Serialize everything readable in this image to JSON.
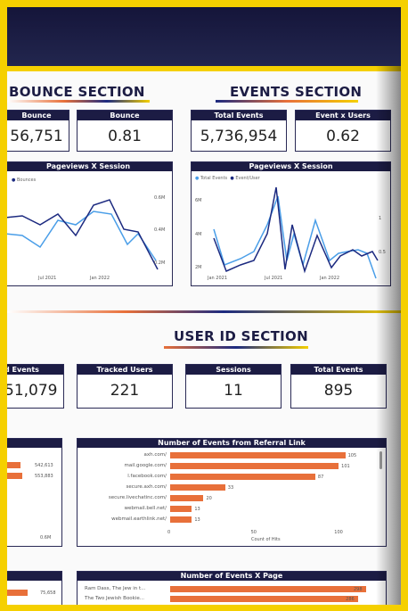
{
  "sections": {
    "bounce": "BOUNCE SECTION",
    "events": "EVENTS SECTION",
    "userid": "USER ID SECTION"
  },
  "cards_top": [
    {
      "label": "Bounce",
      "value": "56,751"
    },
    {
      "label": "Bounce",
      "value": "0.81"
    },
    {
      "label": "Total Events",
      "value": "5,736,954"
    },
    {
      "label": "Event x Users",
      "value": "0.62"
    }
  ],
  "cards_user": [
    {
      "label": "d Events",
      "value": "51,079"
    },
    {
      "label": "Tracked Users",
      "value": "221"
    },
    {
      "label": "Sessions",
      "value": "11"
    },
    {
      "label": "Total Events",
      "value": "895"
    }
  ],
  "pageviews_left": {
    "title": "Pageviews X Session",
    "legend": [
      "Bounces"
    ],
    "yticks": [
      "0.6M",
      "0.4M",
      "0.2M"
    ],
    "xticks": [
      "Jul 2021",
      "Jan 2022"
    ]
  },
  "pageviews_right": {
    "title": "Pageviews X Session",
    "legend": [
      "Total Events",
      "Event/User"
    ],
    "yticks_left": [
      "6M",
      "4M",
      "2M"
    ],
    "yticks_right": [
      "1",
      "0.5"
    ],
    "xticks": [
      "Jan 2021",
      "Jul 2021",
      "Jan 2022"
    ]
  },
  "left_bars": {
    "values": [
      "542,613",
      "553,883"
    ],
    "axis": "0.6M"
  },
  "chart_data": [
    {
      "type": "bar",
      "title": "Number of Events from Referral Link",
      "orientation": "horizontal",
      "categories": [
        "axh.com/",
        "mail.google.com/",
        "l.facebook.com/",
        "secure.axh.com/",
        "secure.livechatinc.com/",
        "webmail.bell.net/",
        "webmail.earthlink.net/"
      ],
      "values": [
        105,
        101,
        87,
        33,
        20,
        13,
        13
      ],
      "xlabel": "Count of Hits",
      "xticks": [
        "0",
        "50",
        "100"
      ],
      "xlim": [
        0,
        110
      ]
    },
    {
      "type": "bar",
      "title": "Number of Events X Page",
      "orientation": "horizontal",
      "categories": [
        "Ram Dass, The Jew in t...",
        "The Two Jewish Bookie..."
      ],
      "values": [
        298,
        286
      ],
      "left_value": "75,658"
    }
  ],
  "colors": {
    "navy": "#1c1c44",
    "orange": "#e8703a",
    "yellow": "#f5d000",
    "line_light": "#4a9ee8",
    "line_dark": "#1c2a80"
  }
}
